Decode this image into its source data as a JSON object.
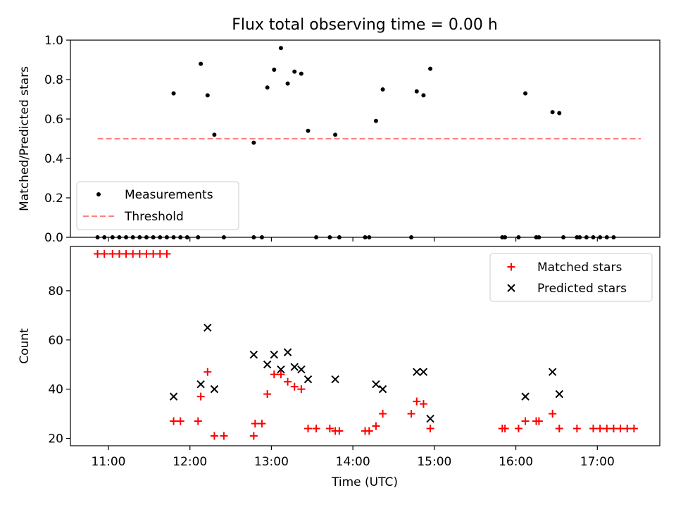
{
  "chart_data": [
    {
      "type": "scatter",
      "title": "Flux total observing time = 0.00 h",
      "xlabel": "",
      "ylabel": "Matched/Predicted stars",
      "ylim": [
        0,
        1.0
      ],
      "yticks": [
        0.0,
        0.2,
        0.4,
        0.6,
        0.8,
        1.0
      ],
      "yticklabels": [
        "0.0",
        "0.2",
        "0.4",
        "0.6",
        "0.8",
        "1.0"
      ],
      "legend_position": "lower-left",
      "series": [
        {
          "name": "Measurements",
          "marker": "dot",
          "color": "#000000",
          "points": [
            [
              "10:52",
              0
            ],
            [
              "10:57",
              0
            ],
            [
              "11:03",
              0
            ],
            [
              "11:08",
              0
            ],
            [
              "11:13",
              0
            ],
            [
              "11:18",
              0
            ],
            [
              "11:23",
              0
            ],
            [
              "11:28",
              0
            ],
            [
              "11:33",
              0
            ],
            [
              "11:38",
              0
            ],
            [
              "11:43",
              0
            ],
            [
              "11:48",
              0
            ],
            [
              "11:53",
              0
            ],
            [
              "11:58",
              0
            ],
            [
              "12:06",
              0
            ],
            [
              "12:25",
              0
            ],
            [
              "12:47",
              0
            ],
            [
              "12:53",
              0
            ],
            [
              "13:33",
              0
            ],
            [
              "13:43",
              0
            ],
            [
              "13:50",
              0
            ],
            [
              "14:09",
              0
            ],
            [
              "14:12",
              0
            ],
            [
              "14:43",
              0
            ],
            [
              "15:50",
              0
            ],
            [
              "15:52",
              0
            ],
            [
              "16:02",
              0
            ],
            [
              "16:15",
              0
            ],
            [
              "16:17",
              0
            ],
            [
              "16:35",
              0
            ],
            [
              "16:45",
              0
            ],
            [
              "16:47",
              0
            ],
            [
              "16:52",
              0
            ],
            [
              "16:57",
              0
            ],
            [
              "17:02",
              0
            ],
            [
              "17:07",
              0
            ],
            [
              "17:12",
              0
            ],
            [
              "11:48",
              0.73
            ],
            [
              "12:08",
              0.88
            ],
            [
              "12:13",
              0.72
            ],
            [
              "12:18",
              0.52
            ],
            [
              "12:47",
              0.48
            ],
            [
              "12:57",
              0.76
            ],
            [
              "13:02",
              0.85
            ],
            [
              "13:07",
              0.96
            ],
            [
              "13:12",
              0.78
            ],
            [
              "13:17",
              0.84
            ],
            [
              "13:22",
              0.83
            ],
            [
              "13:27",
              0.54
            ],
            [
              "13:47",
              0.52
            ],
            [
              "14:17",
              0.59
            ],
            [
              "14:22",
              0.75
            ],
            [
              "14:47",
              0.74
            ],
            [
              "14:52",
              0.72
            ],
            [
              "14:57",
              0.855
            ],
            [
              "16:07",
              0.73
            ],
            [
              "16:27",
              0.635
            ],
            [
              "16:32",
              0.63
            ]
          ]
        },
        {
          "name": "Threshold",
          "style": "dashed",
          "color": "#ff7f7f",
          "x": [
            "10:52",
            "17:32"
          ],
          "values": [
            0.5,
            0.5
          ]
        }
      ]
    },
    {
      "type": "scatter",
      "title": "",
      "xlabel": "Time (UTC)",
      "ylabel": "Count",
      "ylim": [
        17,
        98
      ],
      "yticks": [
        20,
        40,
        60,
        80
      ],
      "yticklabels": [
        "20",
        "40",
        "60",
        "80"
      ],
      "xticks": [
        "11:00",
        "12:00",
        "13:00",
        "14:00",
        "15:00",
        "16:00",
        "17:00"
      ],
      "xticklabels": [
        "11:00",
        "12:00",
        "13:00",
        "14:00",
        "15:00",
        "16:00",
        "17:00"
      ],
      "legend_position": "upper-right",
      "series": [
        {
          "name": "Matched stars",
          "marker": "plus",
          "color": "#ff0000",
          "points": [
            [
              "10:52",
              95
            ],
            [
              "10:57",
              95
            ],
            [
              "11:03",
              95
            ],
            [
              "11:08",
              95
            ],
            [
              "11:13",
              95
            ],
            [
              "11:18",
              95
            ],
            [
              "11:23",
              95
            ],
            [
              "11:28",
              95
            ],
            [
              "11:33",
              95
            ],
            [
              "11:38",
              95
            ],
            [
              "11:43",
              95
            ],
            [
              "11:48",
              27
            ],
            [
              "11:53",
              27
            ],
            [
              "12:06",
              27
            ],
            [
              "12:08",
              37
            ],
            [
              "12:13",
              47
            ],
            [
              "12:18",
              21
            ],
            [
              "12:25",
              21
            ],
            [
              "12:47",
              21
            ],
            [
              "12:48",
              26
            ],
            [
              "12:53",
              26
            ],
            [
              "12:57",
              38
            ],
            [
              "13:02",
              46
            ],
            [
              "13:07",
              46
            ],
            [
              "13:12",
              43
            ],
            [
              "13:17",
              41
            ],
            [
              "13:22",
              40
            ],
            [
              "13:27",
              24
            ],
            [
              "13:33",
              24
            ],
            [
              "13:43",
              24
            ],
            [
              "13:47",
              23
            ],
            [
              "13:50",
              23
            ],
            [
              "14:09",
              23
            ],
            [
              "14:12",
              23
            ],
            [
              "14:17",
              25
            ],
            [
              "14:22",
              30
            ],
            [
              "14:43",
              30
            ],
            [
              "14:47",
              35
            ],
            [
              "14:52",
              34
            ],
            [
              "14:57",
              24
            ],
            [
              "15:50",
              24
            ],
            [
              "15:52",
              24
            ],
            [
              "16:02",
              24
            ],
            [
              "16:07",
              27
            ],
            [
              "16:15",
              27
            ],
            [
              "16:17",
              27
            ],
            [
              "16:27",
              30
            ],
            [
              "16:32",
              24
            ],
            [
              "16:45",
              24
            ],
            [
              "16:57",
              24
            ],
            [
              "17:02",
              24
            ],
            [
              "17:07",
              24
            ],
            [
              "17:12",
              24
            ],
            [
              "17:17",
              24
            ],
            [
              "17:22",
              24
            ],
            [
              "17:27",
              24
            ]
          ]
        },
        {
          "name": "Predicted stars",
          "marker": "x",
          "color": "#000000",
          "points": [
            [
              "11:48",
              37
            ],
            [
              "12:08",
              42
            ],
            [
              "12:13",
              65
            ],
            [
              "12:18",
              40
            ],
            [
              "12:47",
              54
            ],
            [
              "12:57",
              50
            ],
            [
              "13:02",
              54
            ],
            [
              "13:07",
              48
            ],
            [
              "13:12",
              55
            ],
            [
              "13:17",
              49
            ],
            [
              "13:22",
              48
            ],
            [
              "13:27",
              44
            ],
            [
              "13:47",
              44
            ],
            [
              "14:17",
              42
            ],
            [
              "14:22",
              40
            ],
            [
              "14:47",
              47
            ],
            [
              "14:52",
              47
            ],
            [
              "14:57",
              28
            ],
            [
              "16:07",
              37
            ],
            [
              "16:27",
              47
            ],
            [
              "16:32",
              38
            ]
          ]
        }
      ]
    }
  ]
}
